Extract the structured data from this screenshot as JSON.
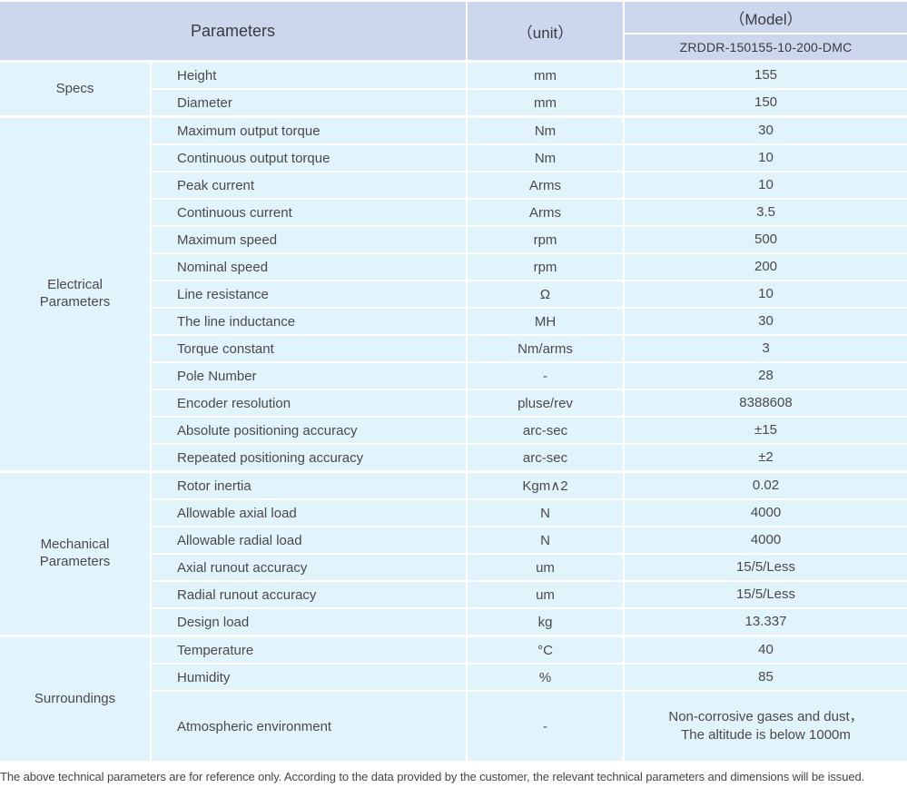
{
  "header": {
    "parameters_label": "Parameters",
    "unit_label": "（unit）",
    "model_label": "（Model）",
    "model_value": "ZRDDR-150155-10-200-DMC"
  },
  "groups": [
    {
      "category": "Specs",
      "rows": [
        {
          "name": "Height",
          "unit": "mm",
          "value": "155"
        },
        {
          "name": "Diameter",
          "unit": "mm",
          "value": "150"
        }
      ]
    },
    {
      "category": "Electrical Parameters",
      "rows": [
        {
          "name": "Maximum output torque",
          "unit": "Nm",
          "value": "30"
        },
        {
          "name": "Continuous output torque",
          "unit": "Nm",
          "value": "10"
        },
        {
          "name": "Peak current",
          "unit": "Arms",
          "value": "10"
        },
        {
          "name": "Continuous current",
          "unit": "Arms",
          "value": "3.5"
        },
        {
          "name": "Maximum speed",
          "unit": "rpm",
          "value": "500"
        },
        {
          "name": "Nominal speed",
          "unit": "rpm",
          "value": "200"
        },
        {
          "name": "Line resistance",
          "unit": "Ω",
          "value": "10"
        },
        {
          "name": "The line inductance",
          "unit": "MH",
          "value": "30"
        },
        {
          "name": "Torque constant",
          "unit": "Nm/arms",
          "value": "3"
        },
        {
          "name": "Pole Number",
          "unit": "-",
          "value": "28"
        },
        {
          "name": "Encoder resolution",
          "unit": "pluse/rev",
          "value": "8388608"
        },
        {
          "name": "Absolute positioning accuracy",
          "unit": "arc-sec",
          "value": "±15"
        },
        {
          "name": "Repeated positioning accuracy",
          "unit": "arc-sec",
          "value": "±2"
        }
      ]
    },
    {
      "category": "Mechanical Parameters",
      "rows": [
        {
          "name": "Rotor inertia",
          "unit": "Kgm∧2",
          "value": "0.02"
        },
        {
          "name": "Allowable axial load",
          "unit": "N",
          "value": "4000"
        },
        {
          "name": "Allowable radial load",
          "unit": "N",
          "value": "4000"
        },
        {
          "name": "Axial runout accuracy",
          "unit": "um",
          "value": "15/5/Less"
        },
        {
          "name": "Radial runout accuracy",
          "unit": "um",
          "value": "15/5/Less"
        },
        {
          "name": "Design load",
          "unit": "kg",
          "value": "13.337"
        }
      ]
    },
    {
      "category": "Surroundings",
      "rows": [
        {
          "name": "Temperature",
          "unit": "°C",
          "value": "40"
        },
        {
          "name": "Humidity",
          "unit": "%",
          "value": "85"
        },
        {
          "name": "Atmospheric environment",
          "unit": "-",
          "value": "Non-corrosive gases and dust，\nThe altitude is below 1000m"
        }
      ]
    }
  ],
  "footer": {
    "note": "The above technical parameters are for reference only. According to the data provided by the customer, the relevant technical parameters and dimensions will be issued."
  },
  "colors": {
    "header_bg": "#ccd6ec",
    "cell_bg": "#e1f3fb",
    "text": "#4a4a4a",
    "header_text": "#3a3a42",
    "page_bg": "#ffffff"
  }
}
